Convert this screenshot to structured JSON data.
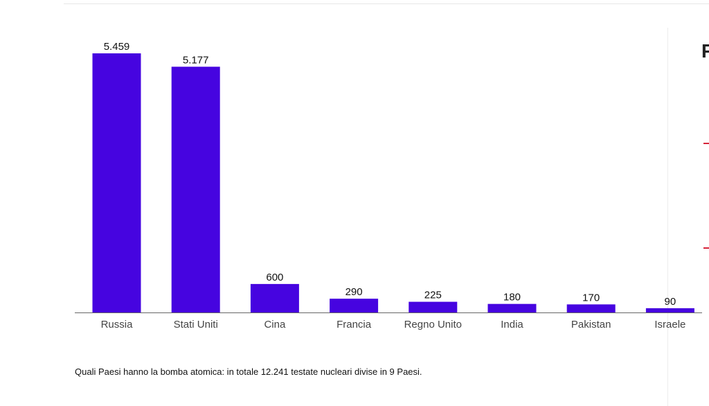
{
  "chart_data": {
    "type": "bar",
    "categories": [
      "Russia",
      "Stati Uniti",
      "Cina",
      "Francia",
      "Regno Unito",
      "India",
      "Pakistan",
      "Israele"
    ],
    "values": [
      5459,
      5177,
      600,
      290,
      225,
      180,
      170,
      90
    ],
    "value_labels": [
      "5.459",
      "5.177",
      "600",
      "290",
      "225",
      "180",
      "170",
      "90"
    ],
    "bar_color": "#4604e0",
    "ylim": [
      0,
      5459
    ],
    "grid": false,
    "title": "",
    "xlabel": "",
    "ylabel": ""
  },
  "caption": "Quali Paesi hanno la bomba atomica: in totale 12.241 testate nucleari divise in 9 Paesi.",
  "side_panel": {
    "letter": "F",
    "accent_color": "#d6243a"
  }
}
